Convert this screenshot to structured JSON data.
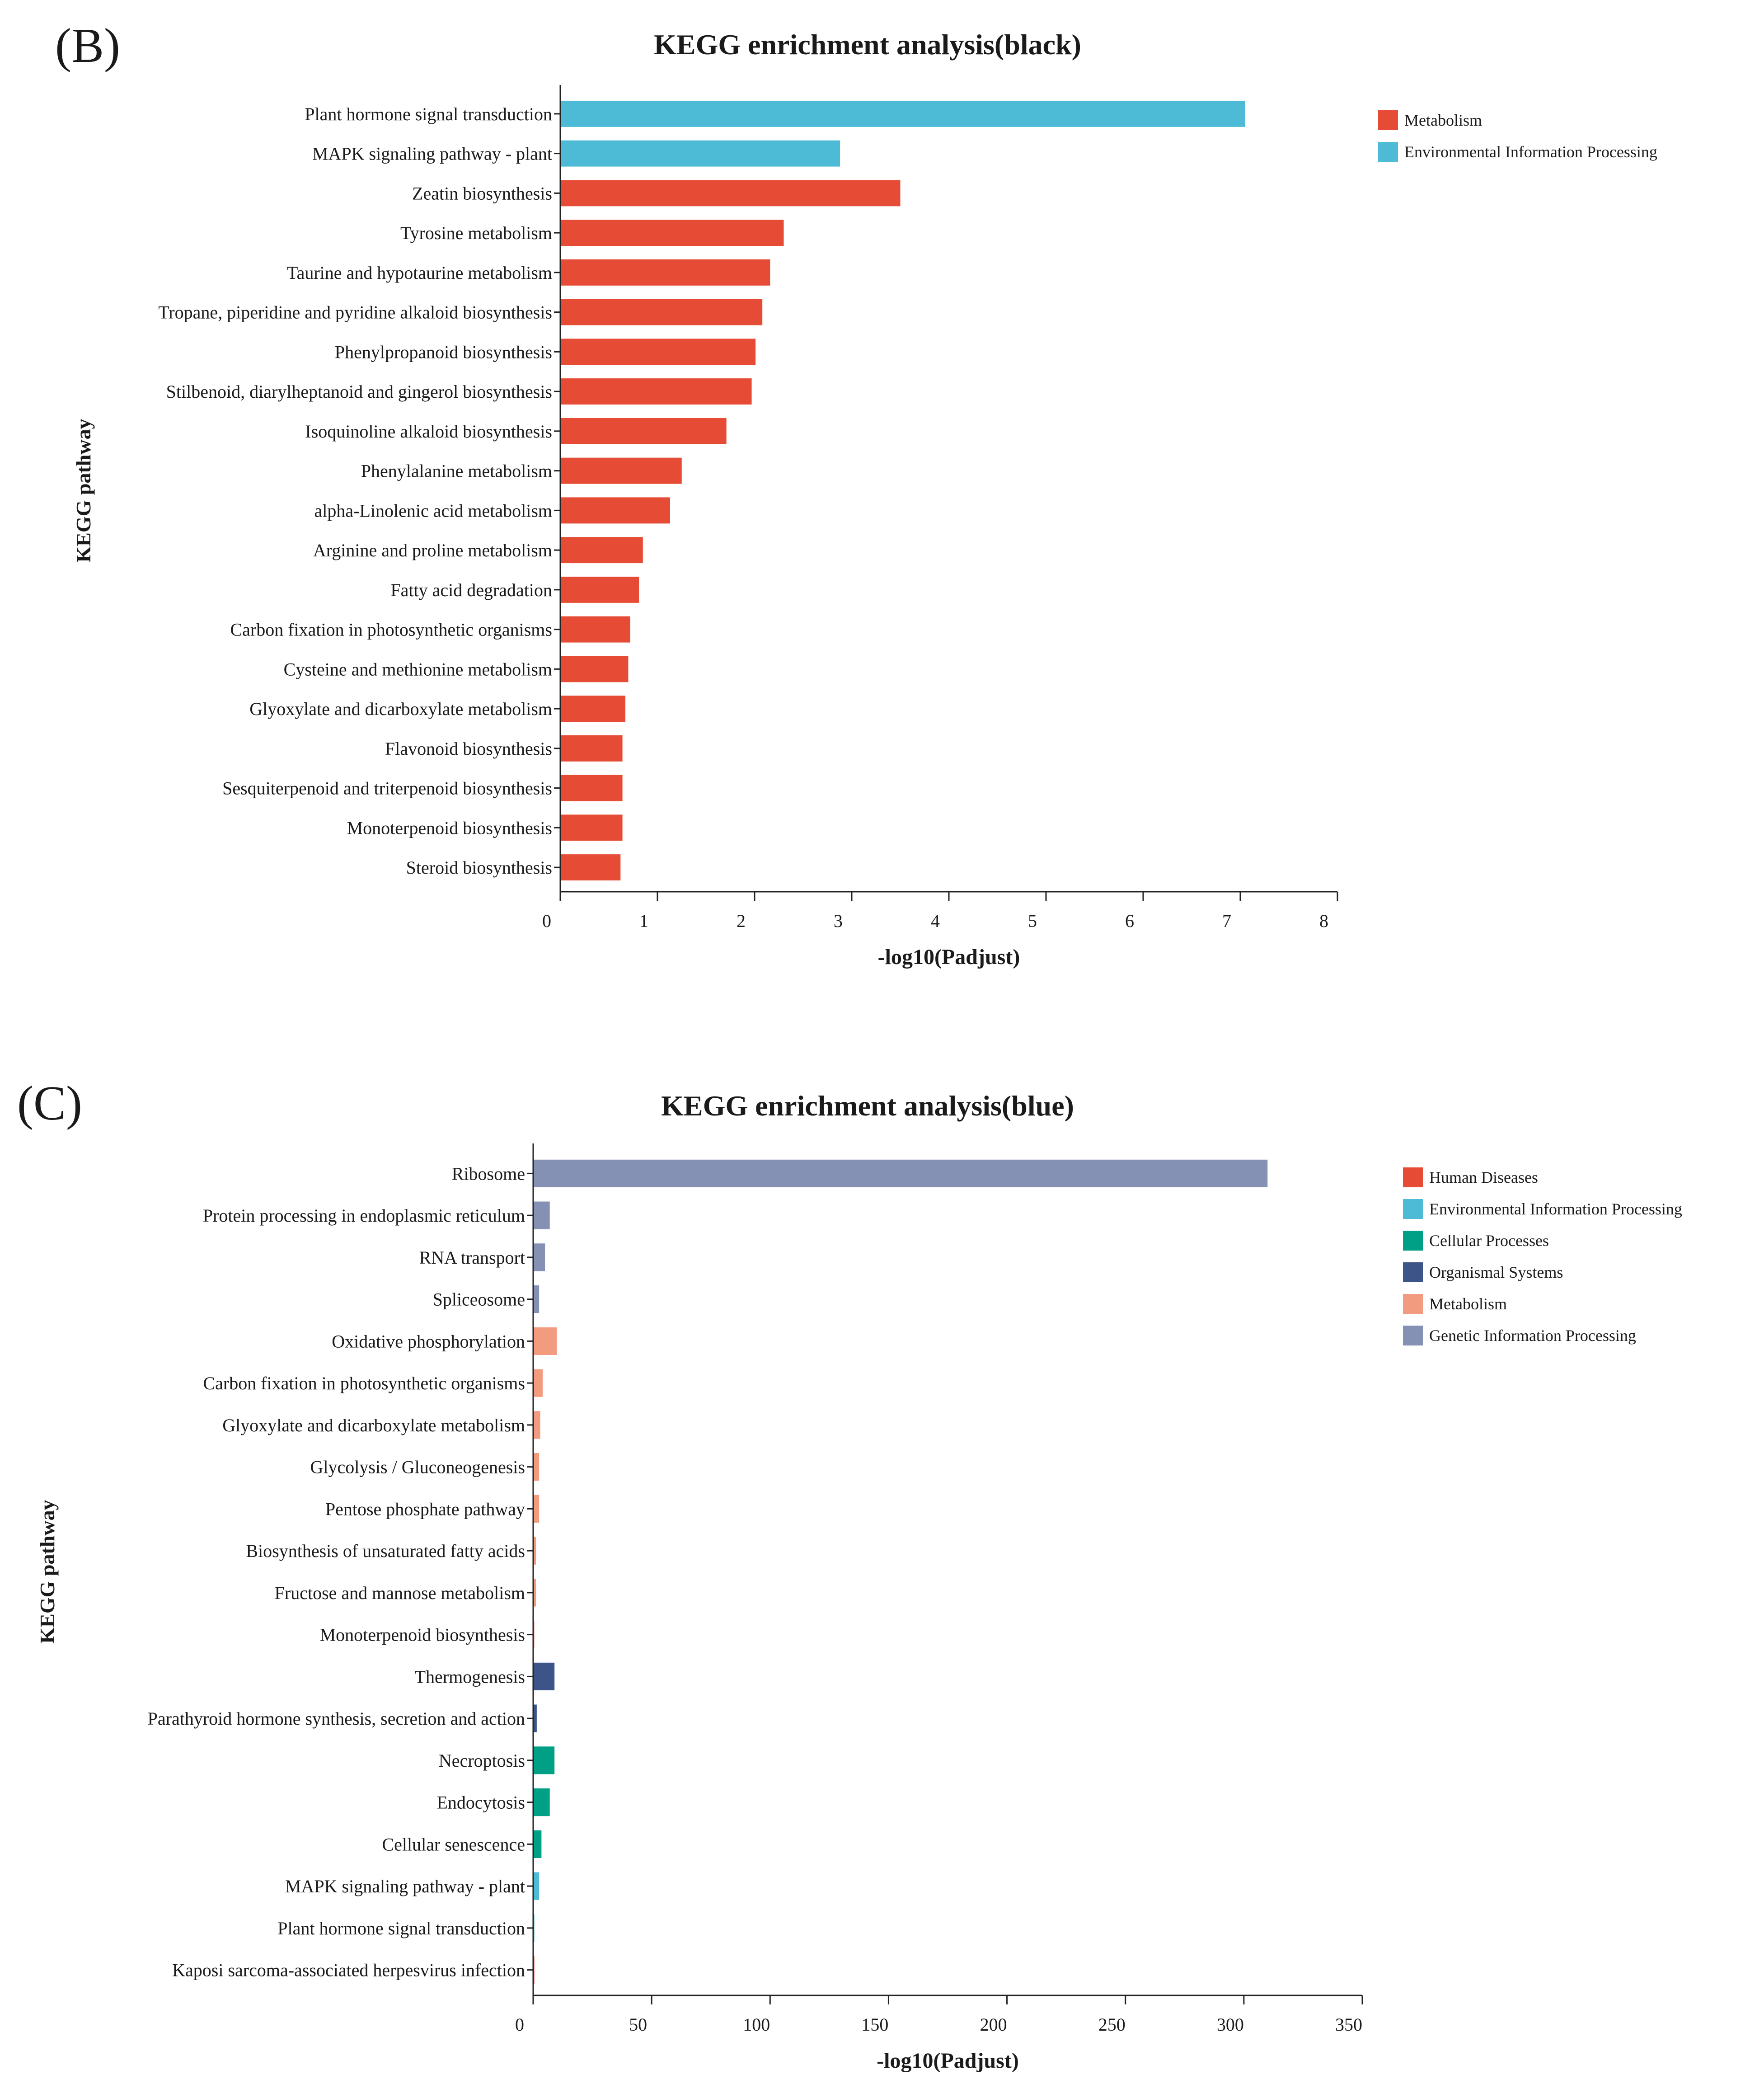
{
  "panels": {
    "b": {
      "letter": "(B)",
      "legend": [
        {
          "label": "Metabolism",
          "color": "#e64b35"
        },
        {
          "label": "Environmental Information Processing",
          "color": "#4dbbd5"
        }
      ]
    },
    "c": {
      "letter": "(C)",
      "legend": [
        {
          "label": "Human Diseases",
          "color": "#e64b35"
        },
        {
          "label": "Environmental Information Processing",
          "color": "#4dbbd5"
        },
        {
          "label": "Cellular Processes",
          "color": "#00a087"
        },
        {
          "label": "Organismal Systems",
          "color": "#3c5488"
        },
        {
          "label": "Metabolism",
          "color": "#f39b7f"
        },
        {
          "label": "Genetic Information Processing",
          "color": "#8491b4"
        }
      ]
    }
  },
  "chart_data": [
    {
      "type": "bar",
      "orientation": "horizontal",
      "title": "KEGG enrichment analysis(black)",
      "xlabel": "-log10(Padjust)",
      "ylabel": "KEGG pathway",
      "xlim": [
        0,
        8
      ],
      "xticks": [
        0,
        1,
        2,
        3,
        4,
        5,
        6,
        7,
        8
      ],
      "categories": [
        "Plant hormone signal transduction",
        "MAPK signaling pathway - plant",
        "Zeatin biosynthesis",
        "Tyrosine metabolism",
        "Taurine and hypotaurine metabolism",
        "Tropane, piperidine and pyridine alkaloid biosynthesis",
        "Phenylpropanoid biosynthesis",
        "Stilbenoid, diarylheptanoid and gingerol biosynthesis",
        "Isoquinoline alkaloid biosynthesis",
        "Phenylalanine metabolism",
        "alpha-Linolenic acid metabolism",
        "Arginine and proline metabolism",
        "Fatty acid degradation",
        "Carbon fixation in photosynthetic organisms",
        "Cysteine and methionine metabolism",
        "Glyoxylate and dicarboxylate metabolism",
        "Flavonoid biosynthesis",
        "Sesquiterpenoid and triterpenoid biosynthesis",
        "Monoterpenoid biosynthesis",
        "Steroid biosynthesis"
      ],
      "values": [
        7.05,
        2.88,
        3.5,
        2.3,
        2.16,
        2.08,
        2.01,
        1.97,
        1.71,
        1.25,
        1.13,
        0.85,
        0.81,
        0.72,
        0.7,
        0.67,
        0.64,
        0.64,
        0.64,
        0.62
      ],
      "groups": [
        "Environmental Information Processing",
        "Environmental Information Processing",
        "Metabolism",
        "Metabolism",
        "Metabolism",
        "Metabolism",
        "Metabolism",
        "Metabolism",
        "Metabolism",
        "Metabolism",
        "Metabolism",
        "Metabolism",
        "Metabolism",
        "Metabolism",
        "Metabolism",
        "Metabolism",
        "Metabolism",
        "Metabolism",
        "Metabolism",
        "Metabolism"
      ],
      "legend": [
        "Metabolism",
        "Environmental Information Processing"
      ]
    },
    {
      "type": "bar",
      "orientation": "horizontal",
      "title": "KEGG enrichment analysis(blue)",
      "xlabel": "-log10(Padjust)",
      "ylabel": "KEGG pathway",
      "xlim": [
        0,
        350
      ],
      "xticks": [
        0,
        50,
        100,
        150,
        200,
        250,
        300,
        350
      ],
      "categories": [
        "Ribosome",
        "Protein processing in endoplasmic reticulum",
        "RNA transport",
        "Spliceosome",
        "Oxidative phosphorylation",
        "Carbon fixation in photosynthetic organisms",
        "Glyoxylate and dicarboxylate metabolism",
        "Glycolysis / Gluconeogenesis",
        "Pentose phosphate pathway",
        "Biosynthesis of unsaturated fatty acids",
        "Fructose and mannose metabolism",
        "Monoterpenoid biosynthesis",
        "Thermogenesis",
        "Parathyroid hormone synthesis, secretion and action",
        "Necroptosis",
        "Endocytosis",
        "Cellular senescence",
        "MAPK signaling pathway - plant",
        "Plant hormone signal transduction",
        "Kaposi sarcoma-associated herpesvirus infection"
      ],
      "values": [
        310,
        7,
        5,
        2.5,
        10,
        4,
        3,
        2.5,
        2.5,
        1.2,
        1.2,
        0.5,
        9,
        1.5,
        9,
        7,
        3.5,
        2.5,
        0.5,
        0.5
      ],
      "groups": [
        "Genetic Information Processing",
        "Genetic Information Processing",
        "Genetic Information Processing",
        "Genetic Information Processing",
        "Metabolism",
        "Metabolism",
        "Metabolism",
        "Metabolism",
        "Metabolism",
        "Metabolism",
        "Metabolism",
        "Metabolism",
        "Organismal Systems",
        "Organismal Systems",
        "Cellular Processes",
        "Cellular Processes",
        "Cellular Processes",
        "Environmental Information Processing",
        "Environmental Information Processing",
        "Human Diseases"
      ],
      "legend": [
        "Human Diseases",
        "Environmental Information Processing",
        "Cellular Processes",
        "Organismal Systems",
        "Metabolism",
        "Genetic Information Processing"
      ]
    }
  ]
}
